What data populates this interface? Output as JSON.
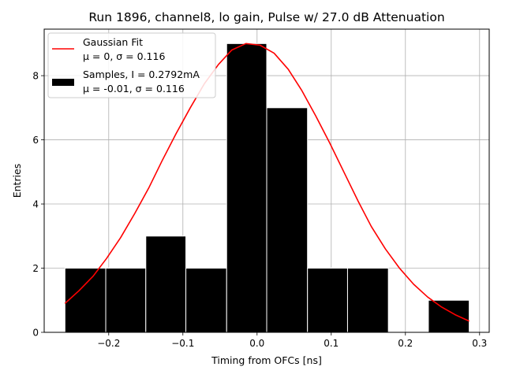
{
  "chart_data": {
    "type": "bar",
    "title": "Run 1896, channel8, lo gain, Pulse w/ 27.0 dB Attenuation",
    "xlabel": "Timing from OFCs [ns]",
    "ylabel": "Entries",
    "xlim": [
      -0.287,
      0.313
    ],
    "ylim": [
      0,
      9.45
    ],
    "grid": true,
    "legend_placement": "upper-left",
    "x_ticks": [
      -0.2,
      -0.1,
      0.0,
      0.1,
      0.2,
      0.3
    ],
    "x_tick_labels": [
      "−0.2",
      "−0.1",
      "0.0",
      "0.1",
      "0.2",
      "0.3"
    ],
    "y_ticks": [
      0,
      2,
      4,
      6,
      8
    ],
    "y_tick_labels": [
      "0",
      "2",
      "4",
      "6",
      "8"
    ],
    "histogram": {
      "name": "Samples, I = 0.2792mA",
      "stats": "μ = -0.01, σ = 0.116",
      "color": "#000000",
      "edgecolor": "#ffffff",
      "bin_edges": [
        -0.259,
        -0.204,
        -0.15,
        -0.096,
        -0.041,
        0.013,
        0.068,
        0.122,
        0.177,
        0.231,
        0.286
      ],
      "counts": [
        2,
        2,
        3,
        2,
        9,
        7,
        2,
        2,
        0,
        1
      ]
    },
    "fit": {
      "name": "Gaussian Fit",
      "stats": "μ = 0, σ = 0.116",
      "color": "#ff0000",
      "x": [
        -0.259,
        -0.24,
        -0.221,
        -0.203,
        -0.184,
        -0.165,
        -0.146,
        -0.128,
        -0.109,
        -0.09,
        -0.071,
        -0.052,
        -0.034,
        -0.015,
        0.004,
        0.023,
        0.042,
        0.06,
        0.079,
        0.098,
        0.117,
        0.136,
        0.154,
        0.173,
        0.192,
        0.211,
        0.23,
        0.248,
        0.267,
        0.286
      ],
      "y": [
        0.9,
        1.3,
        1.75,
        2.3,
        2.95,
        3.7,
        4.5,
        5.35,
        6.2,
        7.0,
        7.75,
        8.35,
        8.8,
        9.0,
        8.95,
        8.7,
        8.2,
        7.55,
        6.75,
        5.9,
        5.0,
        4.1,
        3.3,
        2.6,
        2.0,
        1.5,
        1.1,
        0.8,
        0.55,
        0.35
      ]
    }
  }
}
